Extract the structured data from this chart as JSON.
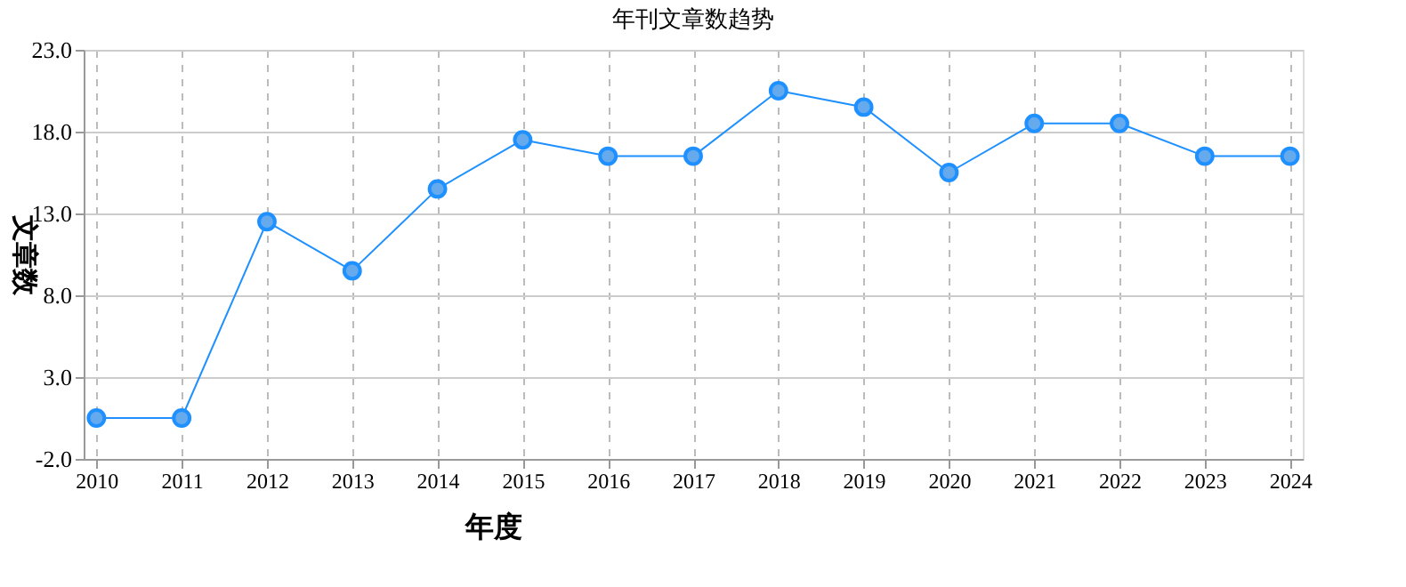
{
  "chart_data": {
    "type": "line",
    "title": "年刊文章数趋势",
    "xlabel": "年度",
    "ylabel": "文章数",
    "categories": [
      "2010",
      "2011",
      "2012",
      "2013",
      "2014",
      "2015",
      "2016",
      "2017",
      "2018",
      "2019",
      "2020",
      "2021",
      "2022",
      "2023",
      "2024"
    ],
    "series": [
      {
        "color": "#1e90ff",
        "values": [
          0.5,
          0.5,
          12.5,
          9.5,
          14.5,
          17.5,
          16.5,
          16.5,
          20.5,
          19.5,
          15.5,
          18.5,
          18.5,
          16.5,
          16.5
        ]
      }
    ],
    "ylim": [
      -2,
      23
    ],
    "yticks": [
      {
        "value": -2,
        "label": "-2.0"
      },
      {
        "value": 3,
        "label": "3.0"
      },
      {
        "value": 8,
        "label": "8.0"
      },
      {
        "value": 13,
        "label": "13.0"
      },
      {
        "value": 18,
        "label": "18.0"
      },
      {
        "value": 23,
        "label": "23.0"
      }
    ],
    "grid": true,
    "marker": "circle",
    "line_style": "solid"
  }
}
